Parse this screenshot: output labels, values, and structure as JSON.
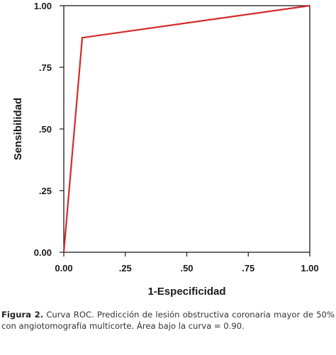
{
  "chart_data": {
    "type": "line",
    "xlabel": "1-Especificidad",
    "ylabel": "Sensibilidad",
    "xlim": [
      0,
      1
    ],
    "ylim": [
      0,
      1
    ],
    "xticks": [
      0.0,
      0.25,
      0.5,
      0.75,
      1.0
    ],
    "yticks": [
      0.0,
      0.25,
      0.5,
      0.75,
      1.0
    ],
    "xtick_labels": [
      "0.00",
      ".25",
      ".50",
      ".75",
      "1.00"
    ],
    "ytick_labels": [
      "0.00",
      ".25",
      ".50",
      ".75",
      "1.00"
    ],
    "grid": false,
    "series": [
      {
        "x": [
          0.0,
          0.075,
          1.0
        ],
        "y": [
          0.0,
          0.87,
          1.0
        ],
        "color": "#d42a2a"
      }
    ]
  },
  "caption": {
    "label": "Figura 2.",
    "text": " Curva ROC. Predicción de lesión obstructiva coronaria mayor de 50% con angiotomografía multicorte. Área bajo la curva = 0.90."
  }
}
